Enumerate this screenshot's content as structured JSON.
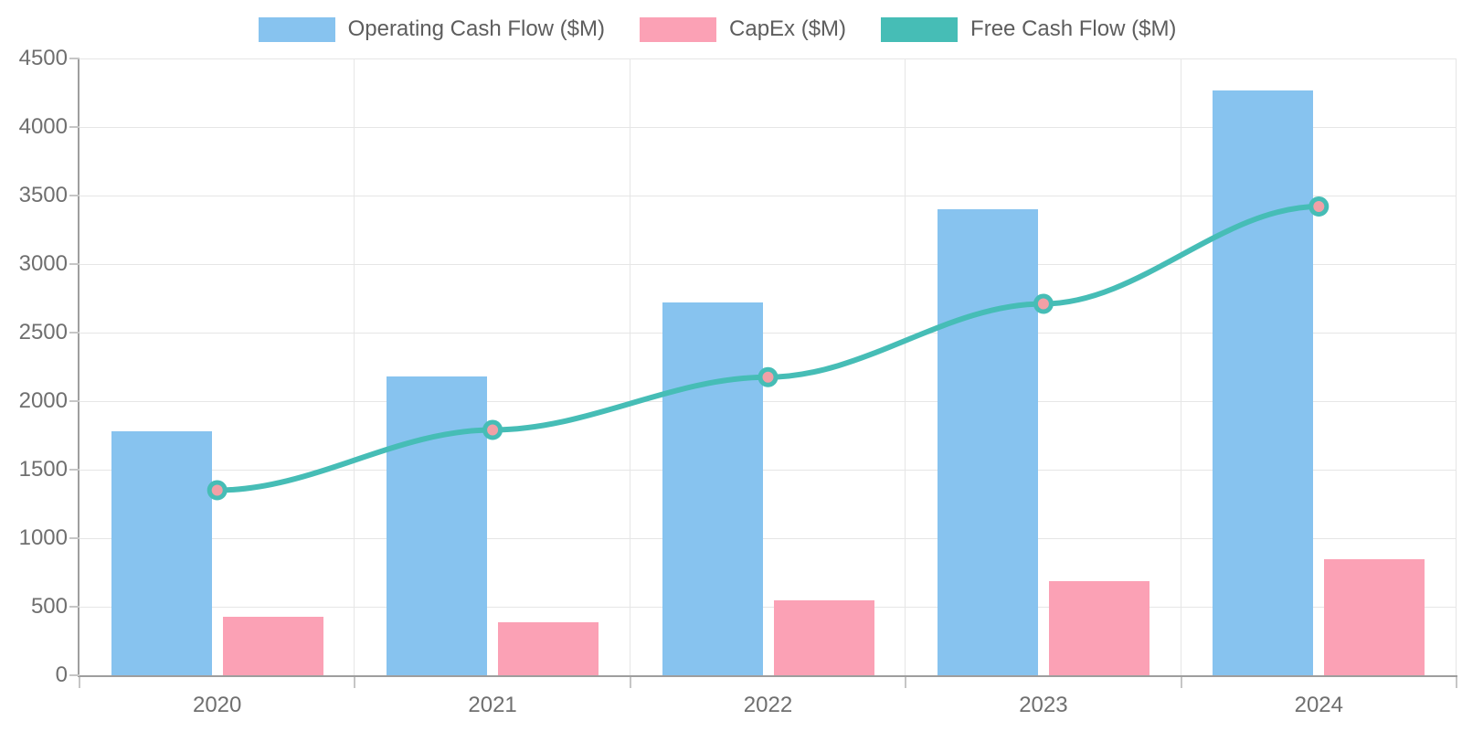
{
  "chart_data": {
    "type": "combo-bar-line",
    "title": "",
    "xlabel": "",
    "ylabel": "",
    "categories": [
      "2020",
      "2021",
      "2022",
      "2023",
      "2024"
    ],
    "series": [
      {
        "name": "Operating Cash Flow ($M)",
        "kind": "bar",
        "color": "#87c3ef",
        "values": [
          1780,
          2180,
          2720,
          3400,
          4270
        ]
      },
      {
        "name": "CapEx ($M)",
        "kind": "bar",
        "color": "#fba1b5",
        "values": [
          430,
          390,
          545,
          690,
          850
        ]
      },
      {
        "name": "Free Cash Flow ($M)",
        "kind": "line",
        "color": "#46bdb6",
        "marker_fill": "#f2a0a6",
        "values": [
          1350,
          1790,
          2175,
          2710,
          3420
        ]
      }
    ],
    "ylim": [
      0,
      4500
    ],
    "yticks": [
      0,
      500,
      1000,
      1500,
      2000,
      2500,
      3000,
      3500,
      4000,
      4500
    ],
    "grid": true,
    "legend_position": "top"
  },
  "style": {
    "grid_color": "#e6e6e6",
    "axis_color": "#9e9e9e",
    "tick_color": "#c6c6c6",
    "label_color": "#6f6f6f",
    "legend_text_color": "#5d5d5d",
    "background": "#ffffff"
  }
}
